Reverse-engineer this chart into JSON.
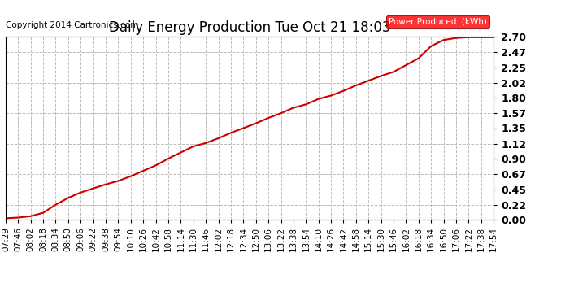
{
  "title": "Daily Energy Production Tue Oct 21 18:03",
  "copyright_text": "Copyright 2014 Cartronics.com",
  "legend_label": "Power Produced  (kWh)",
  "legend_bg": "#ff0000",
  "legend_text_color": "#ffffff",
  "line_color": "#cc0000",
  "line_width": 1.5,
  "bg_color": "#ffffff",
  "plot_bg_color": "#ffffff",
  "grid_color": "#bbbbbb",
  "grid_style": "--",
  "ylim": [
    0.0,
    2.7
  ],
  "yticks": [
    0.0,
    0.22,
    0.45,
    0.67,
    0.9,
    1.12,
    1.35,
    1.57,
    1.8,
    2.02,
    2.25,
    2.47,
    2.7
  ],
  "x_labels": [
    "07:29",
    "07:46",
    "08:02",
    "08:18",
    "08:34",
    "08:50",
    "09:06",
    "09:22",
    "09:38",
    "09:54",
    "10:10",
    "10:26",
    "10:42",
    "10:58",
    "11:14",
    "11:30",
    "11:46",
    "12:02",
    "12:18",
    "12:34",
    "12:50",
    "13:06",
    "13:22",
    "13:38",
    "13:54",
    "14:10",
    "14:26",
    "14:42",
    "14:58",
    "15:14",
    "15:30",
    "15:46",
    "16:02",
    "16:18",
    "16:34",
    "16:50",
    "17:06",
    "17:22",
    "17:38",
    "17:54"
  ],
  "x_values": [
    0,
    1,
    2,
    3,
    4,
    5,
    6,
    7,
    8,
    9,
    10,
    11,
    12,
    13,
    14,
    15,
    16,
    17,
    18,
    19,
    20,
    21,
    22,
    23,
    24,
    25,
    26,
    27,
    28,
    29,
    30,
    31,
    32,
    33,
    34,
    35,
    36,
    37,
    38,
    39
  ],
  "y_values": [
    0.02,
    0.03,
    0.05,
    0.1,
    0.22,
    0.32,
    0.4,
    0.46,
    0.52,
    0.57,
    0.64,
    0.72,
    0.8,
    0.9,
    0.99,
    1.08,
    1.13,
    1.2,
    1.28,
    1.35,
    1.42,
    1.5,
    1.57,
    1.65,
    1.7,
    1.78,
    1.83,
    1.9,
    1.98,
    2.05,
    2.12,
    2.18,
    2.28,
    2.38,
    2.56,
    2.65,
    2.68,
    2.69,
    2.69,
    2.69
  ],
  "title_fontsize": 12,
  "tick_fontsize": 7.5,
  "copyright_fontsize": 7.5,
  "ytick_fontsize": 9,
  "ytick_fontweight": "bold"
}
